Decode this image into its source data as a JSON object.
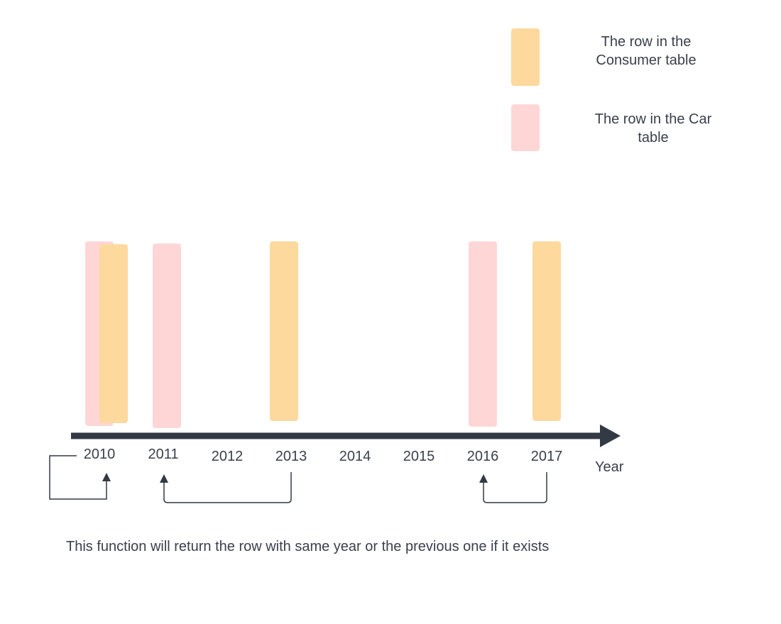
{
  "colors": {
    "consumer": "#fdd99e",
    "car": "#ffd6d6",
    "axis": "#333a45",
    "connector": "#333a45"
  },
  "legend": {
    "consumer_line1": "The row in the",
    "consumer_line2": "Consumer table",
    "car_line1": "The row in the Car",
    "car_line2": "table"
  },
  "timeline": {
    "years": [
      "2010",
      "2011",
      "2012",
      "2013",
      "2014",
      "2015",
      "2016",
      "2017"
    ],
    "axis_label": "Year",
    "consumer_rows": [
      "2010",
      "2013",
      "2017"
    ],
    "car_rows": [
      "2010",
      "2011",
      "2016"
    ]
  },
  "caption": "This function will return the row with same year or the previous one if it exists"
}
